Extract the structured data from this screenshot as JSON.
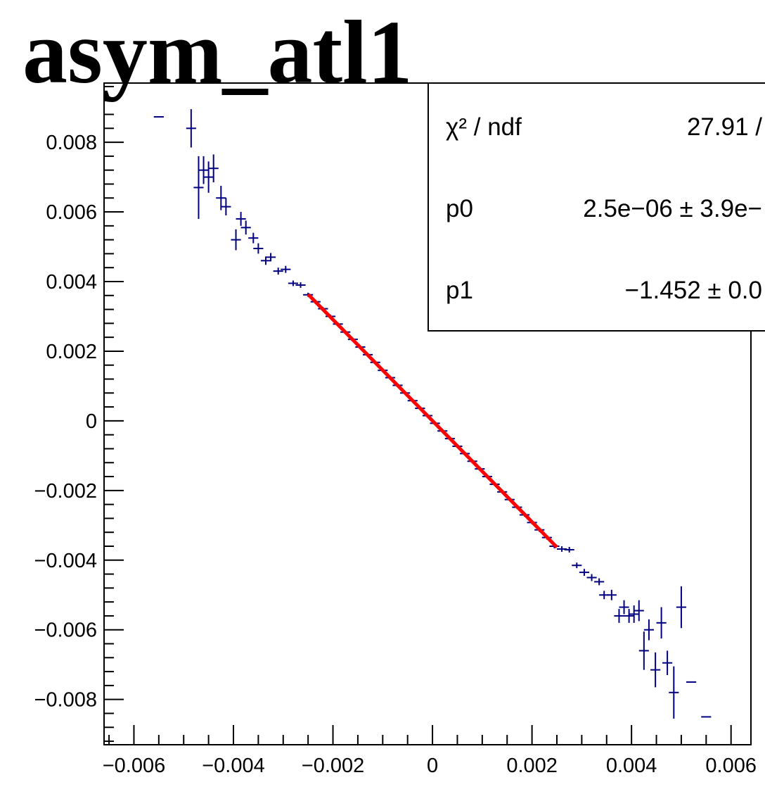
{
  "chart_data": {
    "type": "scatter",
    "title": "asym_atl1",
    "xlabel": "",
    "ylabel": "",
    "xlim": [
      -0.0066,
      0.0064
    ],
    "ylim": [
      -0.0093,
      0.0097
    ],
    "x_ticks": [
      -0.006,
      -0.004,
      -0.002,
      0,
      0.002,
      0.004,
      0.006
    ],
    "x_tick_labels": [
      "−0.006",
      "−0.004",
      "−0.002",
      "0",
      "0.002",
      "0.004",
      "0.006"
    ],
    "y_ticks": [
      -0.008,
      -0.006,
      -0.004,
      -0.002,
      0,
      0.002,
      0.004,
      0.006,
      0.008
    ],
    "y_tick_labels": [
      "−0.008",
      "−0.006",
      "−0.004",
      "−0.002",
      "0",
      "0.002",
      "0.004",
      "0.006",
      "0.008"
    ],
    "grid": false,
    "colors": {
      "points": "#000080",
      "fit": "#ff0000",
      "frame": "#000000"
    },
    "series": [
      {
        "type": "errorbar",
        "points": [
          {
            "x": -0.0055,
            "y": 0.00873,
            "xerr": 0.0001,
            "yerr": 0.0
          },
          {
            "x": -0.00485,
            "y": 0.0084,
            "xerr": 0.0001,
            "yerr": 0.00055
          },
          {
            "x": -0.0047,
            "y": 0.0067,
            "xerr": 0.0001,
            "yerr": 0.0009
          },
          {
            "x": -0.0046,
            "y": 0.0072,
            "xerr": 0.0001,
            "yerr": 0.0004
          },
          {
            "x": -0.0045,
            "y": 0.007,
            "xerr": 0.0001,
            "yerr": 0.00045
          },
          {
            "x": -0.0044,
            "y": 0.00725,
            "xerr": 0.0001,
            "yerr": 0.0004
          },
          {
            "x": -0.00425,
            "y": 0.0064,
            "xerr": 0.0001,
            "yerr": 0.00035
          },
          {
            "x": -0.00415,
            "y": 0.00615,
            "xerr": 0.0001,
            "yerr": 0.00025
          },
          {
            "x": -0.00395,
            "y": 0.0052,
            "xerr": 0.0001,
            "yerr": 0.0003
          },
          {
            "x": -0.00385,
            "y": 0.0058,
            "xerr": 0.0001,
            "yerr": 0.0002
          },
          {
            "x": -0.00375,
            "y": 0.00555,
            "xerr": 0.0001,
            "yerr": 0.0002
          },
          {
            "x": -0.0036,
            "y": 0.00525,
            "xerr": 0.0001,
            "yerr": 0.00015
          },
          {
            "x": -0.0035,
            "y": 0.00495,
            "xerr": 0.0001,
            "yerr": 0.00015
          },
          {
            "x": -0.00335,
            "y": 0.0046,
            "xerr": 0.0001,
            "yerr": 0.00012
          },
          {
            "x": -0.00325,
            "y": 0.0047,
            "xerr": 0.0001,
            "yerr": 0.00012
          },
          {
            "x": -0.0031,
            "y": 0.0043,
            "xerr": 0.0001,
            "yerr": 0.0001
          },
          {
            "x": -0.00295,
            "y": 0.00435,
            "xerr": 0.0001,
            "yerr": 0.0001
          },
          {
            "x": -0.0028,
            "y": 0.00395,
            "xerr": 0.0001,
            "yerr": 8e-05
          },
          {
            "x": -0.00265,
            "y": 0.0039,
            "xerr": 0.0001,
            "yerr": 8e-05
          },
          {
            "x": -0.0025,
            "y": 0.00362,
            "xerr": 0.0001,
            "yerr": 6e-05
          },
          {
            "x": -0.00235,
            "y": 0.00342,
            "xerr": 0.0001,
            "yerr": 6e-05
          },
          {
            "x": -0.0022,
            "y": 0.00322,
            "xerr": 0.0001,
            "yerr": 5e-05
          },
          {
            "x": -0.00205,
            "y": 0.003,
            "xerr": 0.0001,
            "yerr": 5e-05
          },
          {
            "x": -0.0019,
            "y": 0.00278,
            "xerr": 0.0001,
            "yerr": 5e-05
          },
          {
            "x": -0.00175,
            "y": 0.00255,
            "xerr": 0.0001,
            "yerr": 4e-05
          },
          {
            "x": -0.0016,
            "y": 0.00234,
            "xerr": 0.0001,
            "yerr": 4e-05
          },
          {
            "x": -0.00145,
            "y": 0.00212,
            "xerr": 0.0001,
            "yerr": 4e-05
          },
          {
            "x": -0.0013,
            "y": 0.0019,
            "xerr": 0.0001,
            "yerr": 4e-05
          },
          {
            "x": -0.00115,
            "y": 0.00168,
            "xerr": 0.0001,
            "yerr": 3e-05
          },
          {
            "x": -0.001,
            "y": 0.00145,
            "xerr": 0.0001,
            "yerr": 3e-05
          },
          {
            "x": -0.00085,
            "y": 0.00124,
            "xerr": 0.0001,
            "yerr": 3e-05
          },
          {
            "x": -0.0007,
            "y": 0.00102,
            "xerr": 0.0001,
            "yerr": 3e-05
          },
          {
            "x": -0.00055,
            "y": 0.0008,
            "xerr": 0.0001,
            "yerr": 3e-05
          },
          {
            "x": -0.0004,
            "y": 0.00058,
            "xerr": 0.0001,
            "yerr": 3e-05
          },
          {
            "x": -0.00025,
            "y": 0.00036,
            "xerr": 0.0001,
            "yerr": 3e-05
          },
          {
            "x": -0.0001,
            "y": 0.00015,
            "xerr": 0.0001,
            "yerr": 3e-05
          },
          {
            "x": 5e-05,
            "y": -7e-05,
            "xerr": 0.0001,
            "yerr": 3e-05
          },
          {
            "x": 0.0002,
            "y": -0.00029,
            "xerr": 0.0001,
            "yerr": 3e-05
          },
          {
            "x": 0.00035,
            "y": -0.00051,
            "xerr": 0.0001,
            "yerr": 3e-05
          },
          {
            "x": 0.0005,
            "y": -0.00073,
            "xerr": 0.0001,
            "yerr": 3e-05
          },
          {
            "x": 0.00065,
            "y": -0.00094,
            "xerr": 0.0001,
            "yerr": 3e-05
          },
          {
            "x": 0.0008,
            "y": -0.00116,
            "xerr": 0.0001,
            "yerr": 3e-05
          },
          {
            "x": 0.00095,
            "y": -0.00138,
            "xerr": 0.0001,
            "yerr": 3e-05
          },
          {
            "x": 0.0011,
            "y": -0.0016,
            "xerr": 0.0001,
            "yerr": 4e-05
          },
          {
            "x": 0.00125,
            "y": -0.00182,
            "xerr": 0.0001,
            "yerr": 4e-05
          },
          {
            "x": 0.0014,
            "y": -0.00204,
            "xerr": 0.0001,
            "yerr": 4e-05
          },
          {
            "x": 0.00155,
            "y": -0.00226,
            "xerr": 0.0001,
            "yerr": 4e-05
          },
          {
            "x": 0.0017,
            "y": -0.00248,
            "xerr": 0.0001,
            "yerr": 5e-05
          },
          {
            "x": 0.00185,
            "y": -0.0027,
            "xerr": 0.0001,
            "yerr": 5e-05
          },
          {
            "x": 0.002,
            "y": -0.00292,
            "xerr": 0.0001,
            "yerr": 5e-05
          },
          {
            "x": 0.00215,
            "y": -0.00313,
            "xerr": 0.0001,
            "yerr": 6e-05
          },
          {
            "x": 0.0023,
            "y": -0.00335,
            "xerr": 0.0001,
            "yerr": 6e-05
          },
          {
            "x": 0.00245,
            "y": -0.0036,
            "xerr": 0.0001,
            "yerr": 6e-05
          },
          {
            "x": 0.0026,
            "y": -0.00368,
            "xerr": 0.0001,
            "yerr": 8e-05
          },
          {
            "x": 0.00275,
            "y": -0.0037,
            "xerr": 0.0001,
            "yerr": 8e-05
          },
          {
            "x": 0.0029,
            "y": -0.00415,
            "xerr": 0.0001,
            "yerr": 8e-05
          },
          {
            "x": 0.00305,
            "y": -0.00435,
            "xerr": 0.0001,
            "yerr": 0.0001
          },
          {
            "x": 0.0032,
            "y": -0.0045,
            "xerr": 0.0001,
            "yerr": 0.0001
          },
          {
            "x": 0.00335,
            "y": -0.00462,
            "xerr": 0.0001,
            "yerr": 0.0001
          },
          {
            "x": 0.00345,
            "y": -0.005,
            "xerr": 0.0001,
            "yerr": 0.00012
          },
          {
            "x": 0.0036,
            "y": -0.005,
            "xerr": 0.0001,
            "yerr": 0.00015
          },
          {
            "x": 0.00375,
            "y": -0.0056,
            "xerr": 0.0001,
            "yerr": 0.0002
          },
          {
            "x": 0.00385,
            "y": -0.00535,
            "xerr": 0.0001,
            "yerr": 0.0002
          },
          {
            "x": 0.00395,
            "y": -0.0056,
            "xerr": 0.0001,
            "yerr": 0.0002
          },
          {
            "x": 0.00405,
            "y": -0.00555,
            "xerr": 0.0001,
            "yerr": 0.00025
          },
          {
            "x": 0.00415,
            "y": -0.00545,
            "xerr": 0.0001,
            "yerr": 0.0003
          },
          {
            "x": 0.00425,
            "y": -0.0066,
            "xerr": 0.0001,
            "yerr": 0.00055
          },
          {
            "x": 0.00435,
            "y": -0.006,
            "xerr": 0.0001,
            "yerr": 0.0003
          },
          {
            "x": 0.00448,
            "y": -0.00715,
            "xerr": 0.0001,
            "yerr": 0.0005
          },
          {
            "x": 0.0046,
            "y": -0.0058,
            "xerr": 0.0001,
            "yerr": 0.00045
          },
          {
            "x": 0.00472,
            "y": -0.00695,
            "xerr": 0.0001,
            "yerr": 0.00035
          },
          {
            "x": 0.00485,
            "y": -0.0078,
            "xerr": 0.0001,
            "yerr": 0.00075
          },
          {
            "x": 0.005,
            "y": -0.00535,
            "xerr": 0.0001,
            "yerr": 0.0006
          },
          {
            "x": 0.0052,
            "y": -0.0075,
            "xerr": 0.0001,
            "yerr": 0.0
          },
          {
            "x": 0.0055,
            "y": -0.0085,
            "xerr": 0.0001,
            "yerr": 0.0
          }
        ]
      },
      {
        "type": "fit-line",
        "x_range": [
          -0.0025,
          0.0025
        ],
        "p0": 2.5e-06,
        "p1": -1.452
      }
    ],
    "stats_box": {
      "rows": [
        {
          "label": "χ² / ndf",
          "value": "27.91 /"
        },
        {
          "label": "p0",
          "value": "2.5e−06 ± 3.9e−"
        },
        {
          "label": "p1",
          "value": "−1.452 ± 0.0"
        }
      ]
    }
  }
}
